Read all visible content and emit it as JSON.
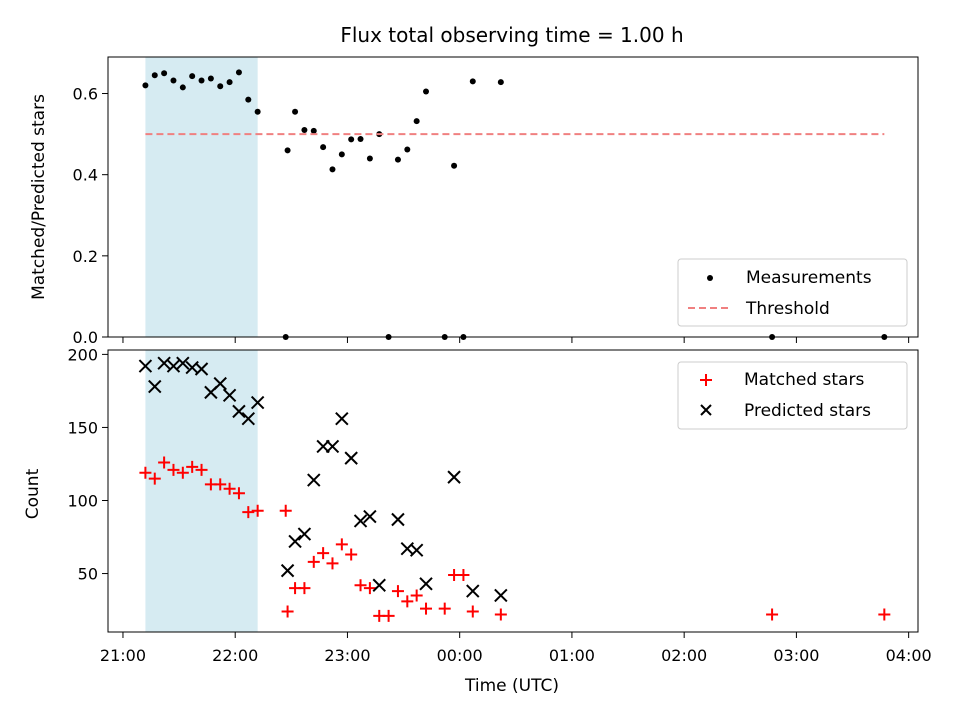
{
  "chart_data": [
    {
      "type": "scatter",
      "title": "Flux total observing time = 1.00 h",
      "ylabel": "Matched/Predicted stars",
      "xlabel": "",
      "xlim": [
        "20:52",
        "04:05"
      ],
      "ylim": [
        0,
        0.69
      ],
      "yticks": [
        0.0,
        0.2,
        0.4,
        0.6
      ],
      "ytick_labels": [
        "0.0",
        "0.2",
        "0.4",
        "0.6"
      ],
      "shaded_span": [
        "21:12",
        "22:12"
      ],
      "shaded_color": "#add8e6",
      "legend_position": "lower-right",
      "series": [
        {
          "name": "Measurements",
          "marker": "dot",
          "color": "#000000",
          "points": [
            [
              "21:12",
              0.62
            ],
            [
              "21:17",
              0.645
            ],
            [
              "21:22",
              0.65
            ],
            [
              "21:27",
              0.632
            ],
            [
              "21:32",
              0.615
            ],
            [
              "21:37",
              0.643
            ],
            [
              "21:42",
              0.632
            ],
            [
              "21:47",
              0.637
            ],
            [
              "21:52",
              0.618
            ],
            [
              "21:57",
              0.628
            ],
            [
              "22:02",
              0.652
            ],
            [
              "22:07",
              0.585
            ],
            [
              "22:12",
              0.555
            ],
            [
              "22:27",
              0.0
            ],
            [
              "22:28",
              0.46
            ],
            [
              "22:32",
              0.555
            ],
            [
              "22:37",
              0.51
            ],
            [
              "22:42",
              0.508
            ],
            [
              "22:47",
              0.468
            ],
            [
              "22:52",
              0.413
            ],
            [
              "22:57",
              0.45
            ],
            [
              "23:02",
              0.487
            ],
            [
              "23:07",
              0.488
            ],
            [
              "23:12",
              0.44
            ],
            [
              "23:17",
              0.5
            ],
            [
              "23:22",
              0.0
            ],
            [
              "23:27",
              0.437
            ],
            [
              "23:32",
              0.462
            ],
            [
              "23:37",
              0.532
            ],
            [
              "23:42",
              0.605
            ],
            [
              "23:52",
              0.0
            ],
            [
              "23:57",
              0.422
            ],
            [
              "00:02",
              0.0
            ],
            [
              "00:07",
              0.63
            ],
            [
              "00:22",
              0.628
            ],
            [
              "02:47",
              0.0
            ],
            [
              "03:47",
              0.0
            ]
          ]
        },
        {
          "name": "Threshold",
          "line": "dashed",
          "color": "#f08080",
          "x": [
            "21:12",
            "03:47"
          ],
          "y": [
            0.5,
            0.5
          ]
        }
      ]
    },
    {
      "type": "scatter",
      "title": "",
      "ylabel": "Count",
      "xlabel": "Time (UTC)",
      "xlim": [
        "20:52",
        "04:05"
      ],
      "ylim": [
        10,
        203
      ],
      "yticks": [
        50,
        100,
        150,
        200
      ],
      "ytick_labels": [
        "50",
        "100",
        "150",
        "200"
      ],
      "xticks": [
        "21:00",
        "22:00",
        "23:00",
        "00:00",
        "01:00",
        "02:00",
        "03:00",
        "04:00"
      ],
      "xtick_labels": [
        "21:00",
        "22:00",
        "23:00",
        "00:00",
        "01:00",
        "02:00",
        "03:00",
        "04:00"
      ],
      "shaded_span": [
        "21:12",
        "22:12"
      ],
      "shaded_color": "#add8e6",
      "legend_position": "upper-right",
      "series": [
        {
          "name": "Matched stars",
          "marker": "plus",
          "color": "#ff0000",
          "points": [
            [
              "21:12",
              119
            ],
            [
              "21:17",
              115
            ],
            [
              "21:22",
              126
            ],
            [
              "21:27",
              121
            ],
            [
              "21:32",
              119
            ],
            [
              "21:37",
              123
            ],
            [
              "21:42",
              121
            ],
            [
              "21:47",
              111
            ],
            [
              "21:52",
              111
            ],
            [
              "21:57",
              108
            ],
            [
              "22:02",
              105
            ],
            [
              "22:07",
              92
            ],
            [
              "22:12",
              93
            ],
            [
              "22:27",
              93
            ],
            [
              "22:28",
              24
            ],
            [
              "22:32",
              40
            ],
            [
              "22:37",
              40
            ],
            [
              "22:42",
              58
            ],
            [
              "22:47",
              64
            ],
            [
              "22:52",
              57
            ],
            [
              "22:57",
              70
            ],
            [
              "23:02",
              63
            ],
            [
              "23:07",
              42
            ],
            [
              "23:12",
              40
            ],
            [
              "23:17",
              21
            ],
            [
              "23:22",
              21
            ],
            [
              "23:27",
              38
            ],
            [
              "23:32",
              31
            ],
            [
              "23:37",
              35
            ],
            [
              "23:42",
              26
            ],
            [
              "23:52",
              26
            ],
            [
              "23:57",
              49
            ],
            [
              "00:02",
              49
            ],
            [
              "00:07",
              24
            ],
            [
              "00:22",
              22
            ],
            [
              "02:47",
              22
            ],
            [
              "03:47",
              22
            ]
          ]
        },
        {
          "name": "Predicted stars",
          "marker": "x",
          "color": "#000000",
          "points": [
            [
              "21:12",
              192
            ],
            [
              "21:17",
              178
            ],
            [
              "21:22",
              194
            ],
            [
              "21:27",
              192
            ],
            [
              "21:32",
              194
            ],
            [
              "21:37",
              191
            ],
            [
              "21:42",
              190
            ],
            [
              "21:47",
              174
            ],
            [
              "21:52",
              180
            ],
            [
              "21:57",
              172
            ],
            [
              "22:02",
              161
            ],
            [
              "22:07",
              156
            ],
            [
              "22:12",
              167
            ],
            [
              "22:28",
              52
            ],
            [
              "22:32",
              72
            ],
            [
              "22:37",
              77
            ],
            [
              "22:42",
              114
            ],
            [
              "22:47",
              137
            ],
            [
              "22:52",
              137
            ],
            [
              "22:57",
              156
            ],
            [
              "23:02",
              129
            ],
            [
              "23:07",
              86
            ],
            [
              "23:12",
              89
            ],
            [
              "23:17",
              42
            ],
            [
              "23:27",
              87
            ],
            [
              "23:32",
              67
            ],
            [
              "23:37",
              66
            ],
            [
              "23:42",
              43
            ],
            [
              "23:57",
              116
            ],
            [
              "00:07",
              38
            ],
            [
              "00:22",
              35
            ]
          ]
        }
      ]
    }
  ]
}
